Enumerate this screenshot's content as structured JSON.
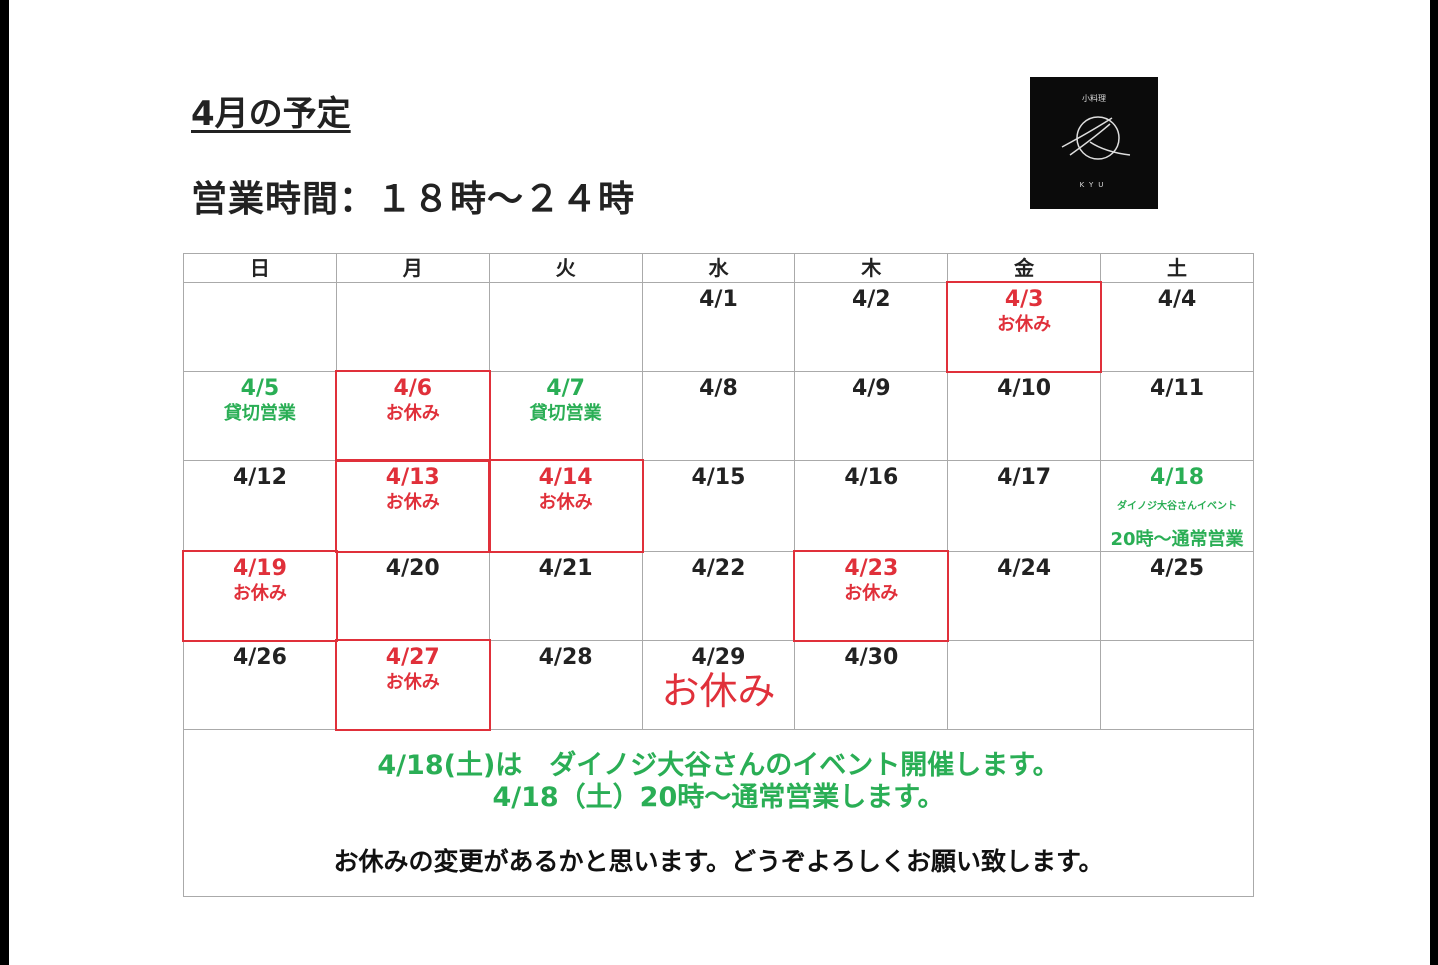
{
  "title": "4月の予定",
  "hours": "営業時間：１８時～２４時",
  "logo": {
    "jp": "小料理",
    "en": "KYU"
  },
  "colors": {
    "red": "#e0303a",
    "green": "#2aae55",
    "black": "#222222"
  },
  "weekdays": [
    "日",
    "月",
    "火",
    "水",
    "木",
    "金",
    "土"
  ],
  "weeks": [
    [
      {},
      {},
      {},
      {
        "date": "4/1"
      },
      {
        "date": "4/2"
      },
      {
        "date": "4/3",
        "note": "お休み",
        "color": "red",
        "boxed": true
      },
      {
        "date": "4/4"
      }
    ],
    [
      {
        "date": "4/5",
        "note": "貸切営業",
        "color": "green"
      },
      {
        "date": "4/6",
        "note": "お休み",
        "color": "red",
        "boxed": true
      },
      {
        "date": "4/7",
        "note": "貸切営業",
        "color": "green"
      },
      {
        "date": "4/8"
      },
      {
        "date": "4/9"
      },
      {
        "date": "4/10"
      },
      {
        "date": "4/11"
      }
    ],
    [
      {
        "date": "4/12"
      },
      {
        "date": "4/13",
        "note": "お休み",
        "color": "red",
        "boxed": true
      },
      {
        "date": "4/14",
        "note": "お休み",
        "color": "red",
        "boxed": true
      },
      {
        "date": "4/15"
      },
      {
        "date": "4/16"
      },
      {
        "date": "4/17"
      },
      {
        "date": "4/18",
        "note": "ダイノジ大谷さんイベント",
        "note2": "20時～通常営業",
        "color": "green",
        "small": true
      }
    ],
    [
      {
        "date": "4/19",
        "note": "お休み",
        "color": "red",
        "boxed": true
      },
      {
        "date": "4/20"
      },
      {
        "date": "4/21"
      },
      {
        "date": "4/22"
      },
      {
        "date": "4/23",
        "note": "お休み",
        "color": "red",
        "boxed": true
      },
      {
        "date": "4/24"
      },
      {
        "date": "4/25"
      }
    ],
    [
      {
        "date": "4/26"
      },
      {
        "date": "4/27",
        "note": "お休み",
        "color": "red",
        "boxed": true
      },
      {
        "date": "4/28"
      },
      {
        "date": "4/29",
        "note": "お休み",
        "noteColor": "red",
        "big": true
      },
      {
        "date": "4/30"
      },
      {},
      {}
    ]
  ],
  "footer": {
    "line1": "4/18(土)は　ダイノジ大谷さんのイベント開催します。",
    "line2": "4/18（土）20時～通常営業します。",
    "line3": "お休みの変更があるかと思います。どうぞよろしくお願い致します。"
  }
}
